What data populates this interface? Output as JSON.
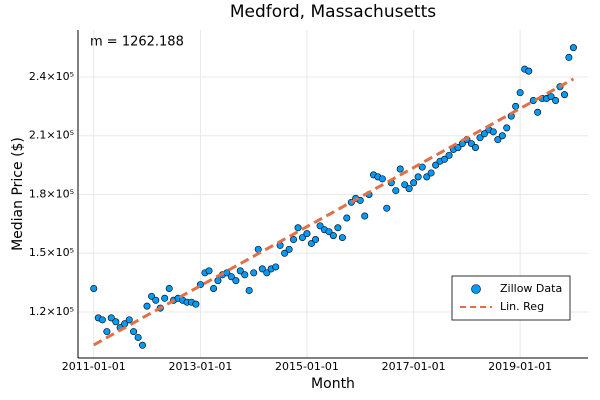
{
  "chart_data": {
    "type": "scatter",
    "title": "Medford, Massachusetts",
    "xlabel": "Month",
    "ylabel": "Median Price ($)",
    "annotation": "m = 1262.188",
    "xlim": [
      "2010-09-15",
      "2020-04-10"
    ],
    "xticks": [
      "2011-01-01",
      "2013-01-01",
      "2015-01-01",
      "2017-01-01",
      "2019-01-01"
    ],
    "ylim": [
      96500,
      264000
    ],
    "yticks": [
      {
        "value": 120000,
        "label": "1.2×10⁵"
      },
      {
        "value": 150000,
        "label": "1.5×10⁵"
      },
      {
        "value": 180000,
        "label": "1.8×10⁵"
      },
      {
        "value": 210000,
        "label": "2.1×10⁵"
      },
      {
        "value": 240000,
        "label": "2.4×10⁵"
      }
    ],
    "grid": true,
    "legend": "bottom-right",
    "series": [
      {
        "name": "Zillow Data",
        "type": "scatter",
        "color": "#009af9",
        "x": [
          "2011-01-01",
          "2011-02-01",
          "2011-03-01",
          "2011-04-01",
          "2011-05-01",
          "2011-06-01",
          "2011-07-01",
          "2011-08-01",
          "2011-09-01",
          "2011-10-01",
          "2011-11-01",
          "2011-12-01",
          "2012-01-01",
          "2012-02-01",
          "2012-03-01",
          "2012-04-01",
          "2012-05-01",
          "2012-06-01",
          "2012-07-01",
          "2012-08-01",
          "2012-09-01",
          "2012-10-01",
          "2012-11-01",
          "2012-12-01",
          "2013-01-01",
          "2013-02-01",
          "2013-03-01",
          "2013-04-01",
          "2013-05-01",
          "2013-06-01",
          "2013-07-01",
          "2013-08-01",
          "2013-09-01",
          "2013-10-01",
          "2013-11-01",
          "2013-12-01",
          "2014-01-01",
          "2014-02-01",
          "2014-03-01",
          "2014-04-01",
          "2014-05-01",
          "2014-06-01",
          "2014-07-01",
          "2014-08-01",
          "2014-09-01",
          "2014-10-01",
          "2014-11-01",
          "2014-12-01",
          "2015-01-01",
          "2015-02-01",
          "2015-03-01",
          "2015-04-01",
          "2015-05-01",
          "2015-06-01",
          "2015-07-01",
          "2015-08-01",
          "2015-09-01",
          "2015-10-01",
          "2015-11-01",
          "2015-12-01",
          "2016-01-01",
          "2016-02-01",
          "2016-03-01",
          "2016-04-01",
          "2016-05-01",
          "2016-06-01",
          "2016-07-01",
          "2016-08-01",
          "2016-09-01",
          "2016-10-01",
          "2016-11-01",
          "2016-12-01",
          "2017-01-01",
          "2017-02-01",
          "2017-03-01",
          "2017-04-01",
          "2017-05-01",
          "2017-06-01",
          "2017-07-01",
          "2017-08-01",
          "2017-09-01",
          "2017-10-01",
          "2017-11-01",
          "2017-12-01",
          "2018-01-01",
          "2018-02-01",
          "2018-03-01",
          "2018-04-01",
          "2018-05-01",
          "2018-06-01",
          "2018-07-01",
          "2018-08-01",
          "2018-09-01",
          "2018-10-01",
          "2018-11-01",
          "2018-12-01",
          "2019-01-01",
          "2019-02-01",
          "2019-03-01",
          "2019-04-01",
          "2019-05-01",
          "2019-06-01",
          "2019-07-01",
          "2019-08-01",
          "2019-09-01",
          "2019-10-01",
          "2019-11-01",
          "2019-12-01",
          "2020-01-01"
        ],
        "values": [
          132000,
          117000,
          116000,
          110000,
          117000,
          115000,
          112000,
          114000,
          116000,
          110000,
          107000,
          103000,
          123000,
          128000,
          126000,
          122000,
          127000,
          132000,
          126000,
          127000,
          126000,
          125000,
          125000,
          124000,
          134000,
          140000,
          141000,
          132000,
          136000,
          139000,
          140000,
          138000,
          136000,
          141000,
          139000,
          131000,
          140000,
          152000,
          142000,
          140000,
          142000,
          143000,
          154000,
          150000,
          152000,
          157000,
          163000,
          158000,
          160000,
          155000,
          157000,
          164000,
          162000,
          161000,
          159000,
          163000,
          158000,
          168000,
          176000,
          178000,
          177000,
          169000,
          180000,
          190000,
          189000,
          188000,
          173000,
          186000,
          182000,
          193000,
          185000,
          183000,
          186000,
          189000,
          194000,
          189000,
          191000,
          195000,
          197000,
          198000,
          200000,
          203000,
          204000,
          206000,
          208000,
          206000,
          204000,
          209000,
          211000,
          213000,
          212000,
          208000,
          210000,
          214000,
          220000,
          225000,
          232000,
          244000,
          243000,
          228000,
          222000,
          229000,
          229000,
          230000,
          228000,
          235000,
          231000,
          250000,
          255000
        ]
      },
      {
        "name": "Lin. Reg",
        "type": "line",
        "color": "#e26f46",
        "x": [
          "2011-01-01",
          "2020-01-01"
        ],
        "values": [
          103200,
          239000
        ]
      }
    ]
  }
}
